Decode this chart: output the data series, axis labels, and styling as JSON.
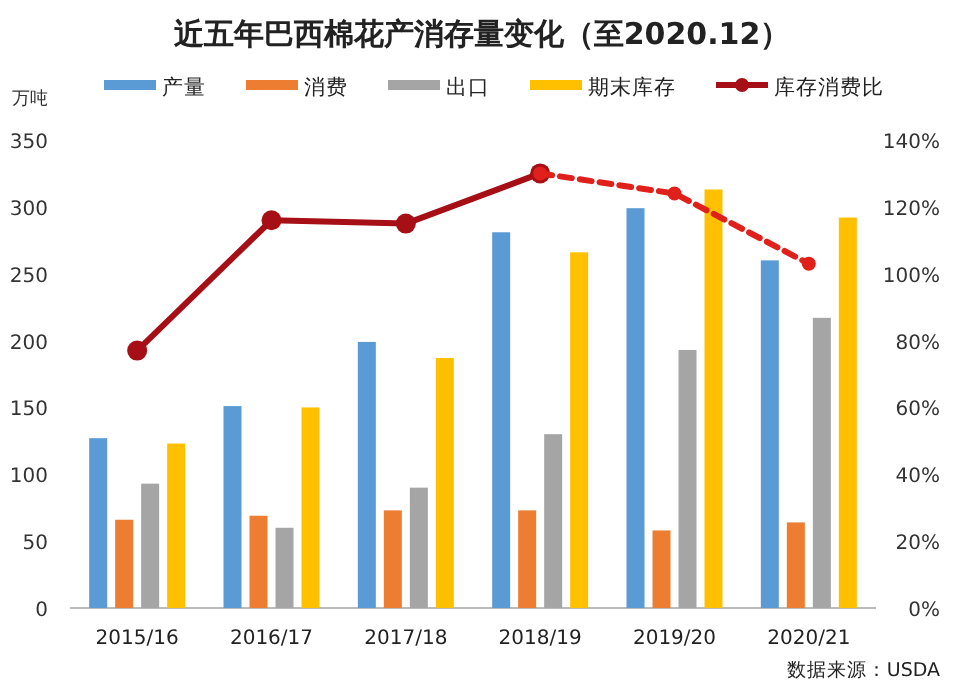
{
  "chart_data": {
    "type": "bar",
    "title": "近五年巴西棉花产消存量变化（至2020.12）",
    "ylabel": "万吨",
    "categories": [
      "2015/16",
      "2016/17",
      "2017/18",
      "2018/19",
      "2019/20",
      "2020/21"
    ],
    "series": [
      {
        "name": "产量",
        "color": "#5b9bd5",
        "values": [
          127,
          151,
          199,
          281,
          299,
          260
        ]
      },
      {
        "name": "消费",
        "color": "#ed7d31",
        "values": [
          66,
          69,
          73,
          73,
          58,
          64
        ]
      },
      {
        "name": "出口",
        "color": "#a5a5a5",
        "values": [
          93,
          60,
          90,
          130,
          193,
          217
        ]
      },
      {
        "name": "期末库存",
        "color": "#ffc000",
        "values": [
          123,
          150,
          187,
          266,
          313,
          292
        ]
      },
      {
        "name": "库存消费比",
        "type": "line",
        "axis": "y2",
        "color": "#a50f15",
        "marker": "circle",
        "line_style": "solid",
        "values": [
          77,
          116,
          115,
          130,
          null,
          null
        ]
      },
      {
        "type": "line",
        "axis": "y2",
        "color": "#e0201b",
        "marker": "circle",
        "line_style": "dashed",
        "values": [
          null,
          null,
          null,
          130,
          124,
          103
        ]
      }
    ],
    "ylim": [
      0,
      350
    ],
    "yticks": [
      0,
      50,
      100,
      150,
      200,
      250,
      300,
      350
    ],
    "y2lim": [
      0,
      140
    ],
    "y2ticks": [
      {
        "value": 0,
        "label": "0%"
      },
      {
        "value": 20,
        "label": "20%"
      },
      {
        "value": 40,
        "label": "40%"
      },
      {
        "value": 60,
        "label": "60%"
      },
      {
        "value": 80,
        "label": "80%"
      },
      {
        "value": 100,
        "label": "100%"
      },
      {
        "value": 120,
        "label": "120%"
      },
      {
        "value": 140,
        "label": "140%"
      }
    ],
    "legend": "top",
    "grid": false,
    "annotations": [
      "数据来源：USDA"
    ]
  }
}
